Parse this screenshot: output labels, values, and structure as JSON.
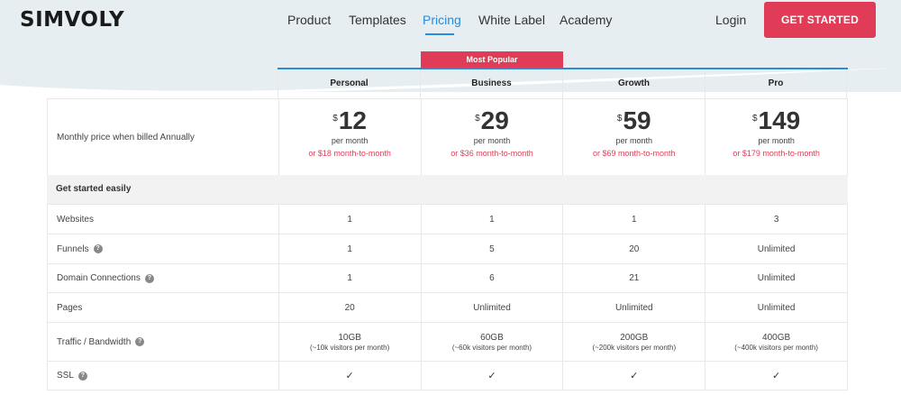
{
  "header": {
    "logo": "SIMVOLY",
    "nav": [
      {
        "label": "Product",
        "active": false
      },
      {
        "label": "Templates",
        "active": false
      },
      {
        "label": "Pricing",
        "active": true
      },
      {
        "label": "White Label",
        "active": false
      },
      {
        "label": "Academy",
        "active": false
      }
    ],
    "login": "Login",
    "cta": "GET STARTED"
  },
  "badge": "Most Popular",
  "plans": [
    {
      "name": "Personal",
      "currency": "$",
      "amount": "12",
      "per": "per month",
      "alt": "or $18 month-to-month"
    },
    {
      "name": "Business",
      "currency": "$",
      "amount": "29",
      "per": "per month",
      "alt": "or $36 month-to-month"
    },
    {
      "name": "Growth",
      "currency": "$",
      "amount": "59",
      "per": "per month",
      "alt": "or $69 month-to-month"
    },
    {
      "name": "Pro",
      "currency": "$",
      "amount": "149",
      "per": "per month",
      "alt": "or $179 month-to-month"
    }
  ],
  "price_label": "Monthly price when billed Annually",
  "section": "Get started easily",
  "features": [
    {
      "label": "Websites",
      "help": false,
      "values": [
        "1",
        "1",
        "1",
        "3"
      ]
    },
    {
      "label": "Funnels",
      "help": true,
      "values": [
        "1",
        "5",
        "20",
        "Unlimited"
      ]
    },
    {
      "label": "Domain Connections",
      "help": true,
      "values": [
        "1",
        "6",
        "21",
        "Unlimited"
      ]
    },
    {
      "label": "Pages",
      "help": false,
      "values": [
        "20",
        "Unlimited",
        "Unlimited",
        "Unlimited"
      ]
    },
    {
      "label": "Traffic / Bandwidth",
      "help": true,
      "values": [
        "10GB",
        "60GB",
        "200GB",
        "400GB"
      ],
      "notes": [
        "(~10k visitors per month)",
        "(~60k visitors per month)",
        "(~200k visitors per month)",
        "(~400k visitors per month)"
      ]
    },
    {
      "label": "SSL",
      "help": true,
      "values": [
        "✓",
        "✓",
        "✓",
        "✓"
      ]
    }
  ],
  "colors": {
    "accent": "#2a8bd6",
    "brand": "#e03c57",
    "band": "#e6eef2"
  },
  "icons": {
    "help": "question-circle-icon",
    "check": "checkmark-icon"
  }
}
